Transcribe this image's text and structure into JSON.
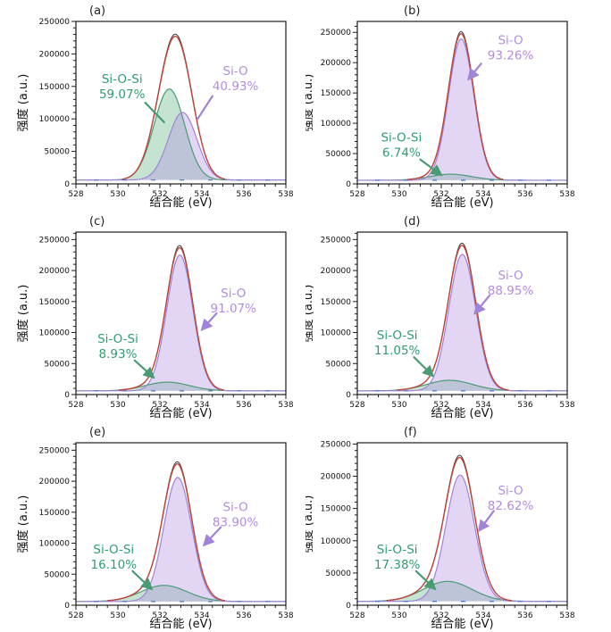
{
  "figure_title": "",
  "axes": {
    "xlabel": "结合能 (eV)",
    "ylabel": "强度 (a.u.)",
    "x_range": [
      528,
      538
    ],
    "x_ticks": [
      528,
      530,
      532,
      534,
      536,
      538
    ],
    "x_minor_step": 0.5,
    "y_ticks": [
      0,
      50000,
      100000,
      150000,
      200000,
      250000
    ],
    "y_minor_step": 10000,
    "grid": false
  },
  "colors": {
    "green_text": "#2f9e6f",
    "green_stroke": "#4a9b74",
    "green_fill": "rgba(124,193,154,0.45)",
    "purple_text": "#b48ce0",
    "purple_stroke": "#a183d8",
    "purple_fill": "rgba(182,147,227,0.38)",
    "envelope_red": "#c0473c",
    "raw_black": "#3c3c3c",
    "baseline_blue": "#5b78d1",
    "axis": "#1a1a1a"
  },
  "chart_data": [
    {
      "type": "area",
      "panel_label": "(a)",
      "column": 0,
      "ymax": 250000,
      "baseline": 6000,
      "series": [
        {
          "name": "Si-O-Si",
          "pct": "59.07%",
          "center": 532.45,
          "amplitude": 140000,
          "sigma": 0.73,
          "role": "green"
        },
        {
          "name": "Si-O",
          "pct": "40.93%",
          "center": 533.08,
          "amplitude": 104000,
          "sigma": 0.68,
          "role": "purple"
        }
      ],
      "annotations": {
        "green": {
          "pos": [
            0.22,
            0.38
          ],
          "leader": [
            0.33,
            0.5,
            0.42,
            0.62
          ],
          "arrow": false
        },
        "purple": {
          "pos": [
            0.76,
            0.33
          ],
          "leader": [
            0.65,
            0.46,
            0.58,
            0.6
          ],
          "arrow": false
        }
      }
    },
    {
      "type": "area",
      "panel_label": "(b)",
      "column": 1,
      "ymax": 268000,
      "baseline": 6000,
      "series": [
        {
          "name": "Si-O-Si",
          "pct": "6.74%",
          "center": 532.45,
          "amplitude": 10000,
          "sigma": 1.0,
          "role": "green"
        },
        {
          "name": "Si-O",
          "pct": "93.26%",
          "center": 532.95,
          "amplitude": 233000,
          "sigma": 0.6,
          "role": "purple"
        }
      ],
      "annotations": {
        "green": {
          "pos": [
            0.21,
            0.74
          ],
          "leader": [
            0.3,
            0.85,
            0.4,
            0.945
          ],
          "arrow": true
        },
        "purple": {
          "pos": [
            0.73,
            0.14
          ],
          "leader": [
            0.59,
            0.26,
            0.53,
            0.355
          ],
          "arrow": true
        }
      }
    },
    {
      "type": "area",
      "panel_label": "(c)",
      "column": 0,
      "ymax": 262000,
      "baseline": 6000,
      "series": [
        {
          "name": "Si-O-Si",
          "pct": "8.93%",
          "center": 532.35,
          "amplitude": 14000,
          "sigma": 1.05,
          "role": "green"
        },
        {
          "name": "Si-O",
          "pct": "91.07%",
          "center": 532.95,
          "amplitude": 219000,
          "sigma": 0.62,
          "role": "purple"
        }
      ],
      "annotations": {
        "green": {
          "pos": [
            0.2,
            0.68
          ],
          "leader": [
            0.28,
            0.79,
            0.37,
            0.895
          ],
          "arrow": true
        },
        "purple": {
          "pos": [
            0.75,
            0.4
          ],
          "leader": [
            0.67,
            0.5,
            0.6,
            0.6
          ],
          "arrow": true
        }
      }
    },
    {
      "type": "area",
      "panel_label": "(d)",
      "column": 1,
      "ymax": 262000,
      "baseline": 6000,
      "series": [
        {
          "name": "Si-O-Si",
          "pct": "11.05%",
          "center": 532.4,
          "amplitude": 17000,
          "sigma": 1.1,
          "role": "green"
        },
        {
          "name": "Si-O",
          "pct": "88.95%",
          "center": 533.0,
          "amplitude": 220000,
          "sigma": 0.64,
          "role": "purple"
        }
      ],
      "annotations": {
        "green": {
          "pos": [
            0.19,
            0.66
          ],
          "leader": [
            0.27,
            0.77,
            0.36,
            0.885
          ],
          "arrow": true
        },
        "purple": {
          "pos": [
            0.73,
            0.29
          ],
          "leader": [
            0.63,
            0.39,
            0.56,
            0.5
          ],
          "arrow": true
        }
      }
    },
    {
      "type": "area",
      "panel_label": "(e)",
      "column": 0,
      "ymax": 262000,
      "baseline": 6000,
      "series": [
        {
          "name": "Si-O-Si",
          "pct": "16.10%",
          "center": 532.2,
          "amplitude": 26000,
          "sigma": 1.1,
          "role": "green"
        },
        {
          "name": "Si-O",
          "pct": "83.90%",
          "center": 532.85,
          "amplitude": 200000,
          "sigma": 0.66,
          "role": "purple"
        }
      ],
      "annotations": {
        "green": {
          "pos": [
            0.18,
            0.68
          ],
          "leader": [
            0.27,
            0.79,
            0.36,
            0.9
          ],
          "arrow": true
        },
        "purple": {
          "pos": [
            0.76,
            0.42
          ],
          "leader": [
            0.69,
            0.52,
            0.61,
            0.63
          ],
          "arrow": true
        }
      }
    },
    {
      "type": "area",
      "panel_label": "(f)",
      "column": 1,
      "ymax": 252000,
      "baseline": 6000,
      "series": [
        {
          "name": "Si-O-Si",
          "pct": "17.38%",
          "center": 532.3,
          "amplitude": 31000,
          "sigma": 1.15,
          "role": "green"
        },
        {
          "name": "Si-O",
          "pct": "82.62%",
          "center": 532.9,
          "amplitude": 196000,
          "sigma": 0.68,
          "role": "purple"
        }
      ],
      "annotations": {
        "green": {
          "pos": [
            0.19,
            0.68
          ],
          "leader": [
            0.28,
            0.79,
            0.37,
            0.9
          ],
          "arrow": true
        },
        "purple": {
          "pos": [
            0.73,
            0.32
          ],
          "leader": [
            0.65,
            0.42,
            0.58,
            0.54
          ],
          "arrow": true
        }
      }
    }
  ]
}
